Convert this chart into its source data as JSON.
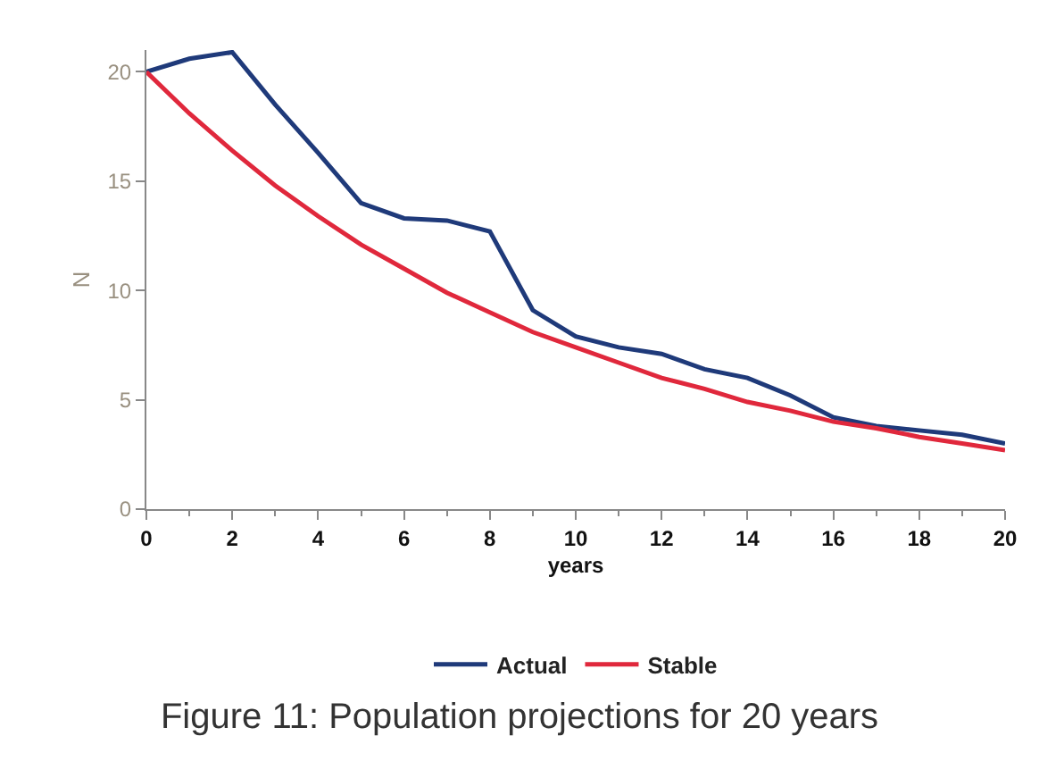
{
  "chart_data": {
    "type": "line",
    "title": "Figure 11: Population projections for 20 years",
    "xlabel": "years",
    "ylabel": "N",
    "x": [
      0,
      1,
      2,
      3,
      4,
      5,
      6,
      7,
      8,
      9,
      10,
      11,
      12,
      13,
      14,
      15,
      16,
      17,
      18,
      19,
      20
    ],
    "series": [
      {
        "name": "Actual",
        "color": "#1f3a7a",
        "values": [
          20,
          20.6,
          20.9,
          18.5,
          16.3,
          14,
          13.3,
          13.2,
          12.7,
          9.1,
          7.9,
          7.4,
          7.1,
          6.4,
          6,
          5.2,
          4.2,
          3.8,
          3.6,
          3.4,
          3
        ]
      },
      {
        "name": "Stable",
        "color": "#e0283c",
        "values": [
          20,
          18.1,
          16.4,
          14.8,
          13.4,
          12.1,
          11,
          9.9,
          9,
          8.1,
          7.4,
          6.7,
          6,
          5.5,
          4.9,
          4.5,
          4,
          3.7,
          3.3,
          3,
          2.7
        ]
      }
    ],
    "xlim": [
      0,
      20
    ],
    "xticks": [
      0,
      2,
      4,
      6,
      8,
      10,
      12,
      14,
      16,
      18,
      20
    ],
    "ylim": [
      0,
      21
    ],
    "yticks": [
      0,
      5,
      10,
      15,
      20
    ],
    "legend": "bottom",
    "marker": "none",
    "line_style": "solid"
  }
}
